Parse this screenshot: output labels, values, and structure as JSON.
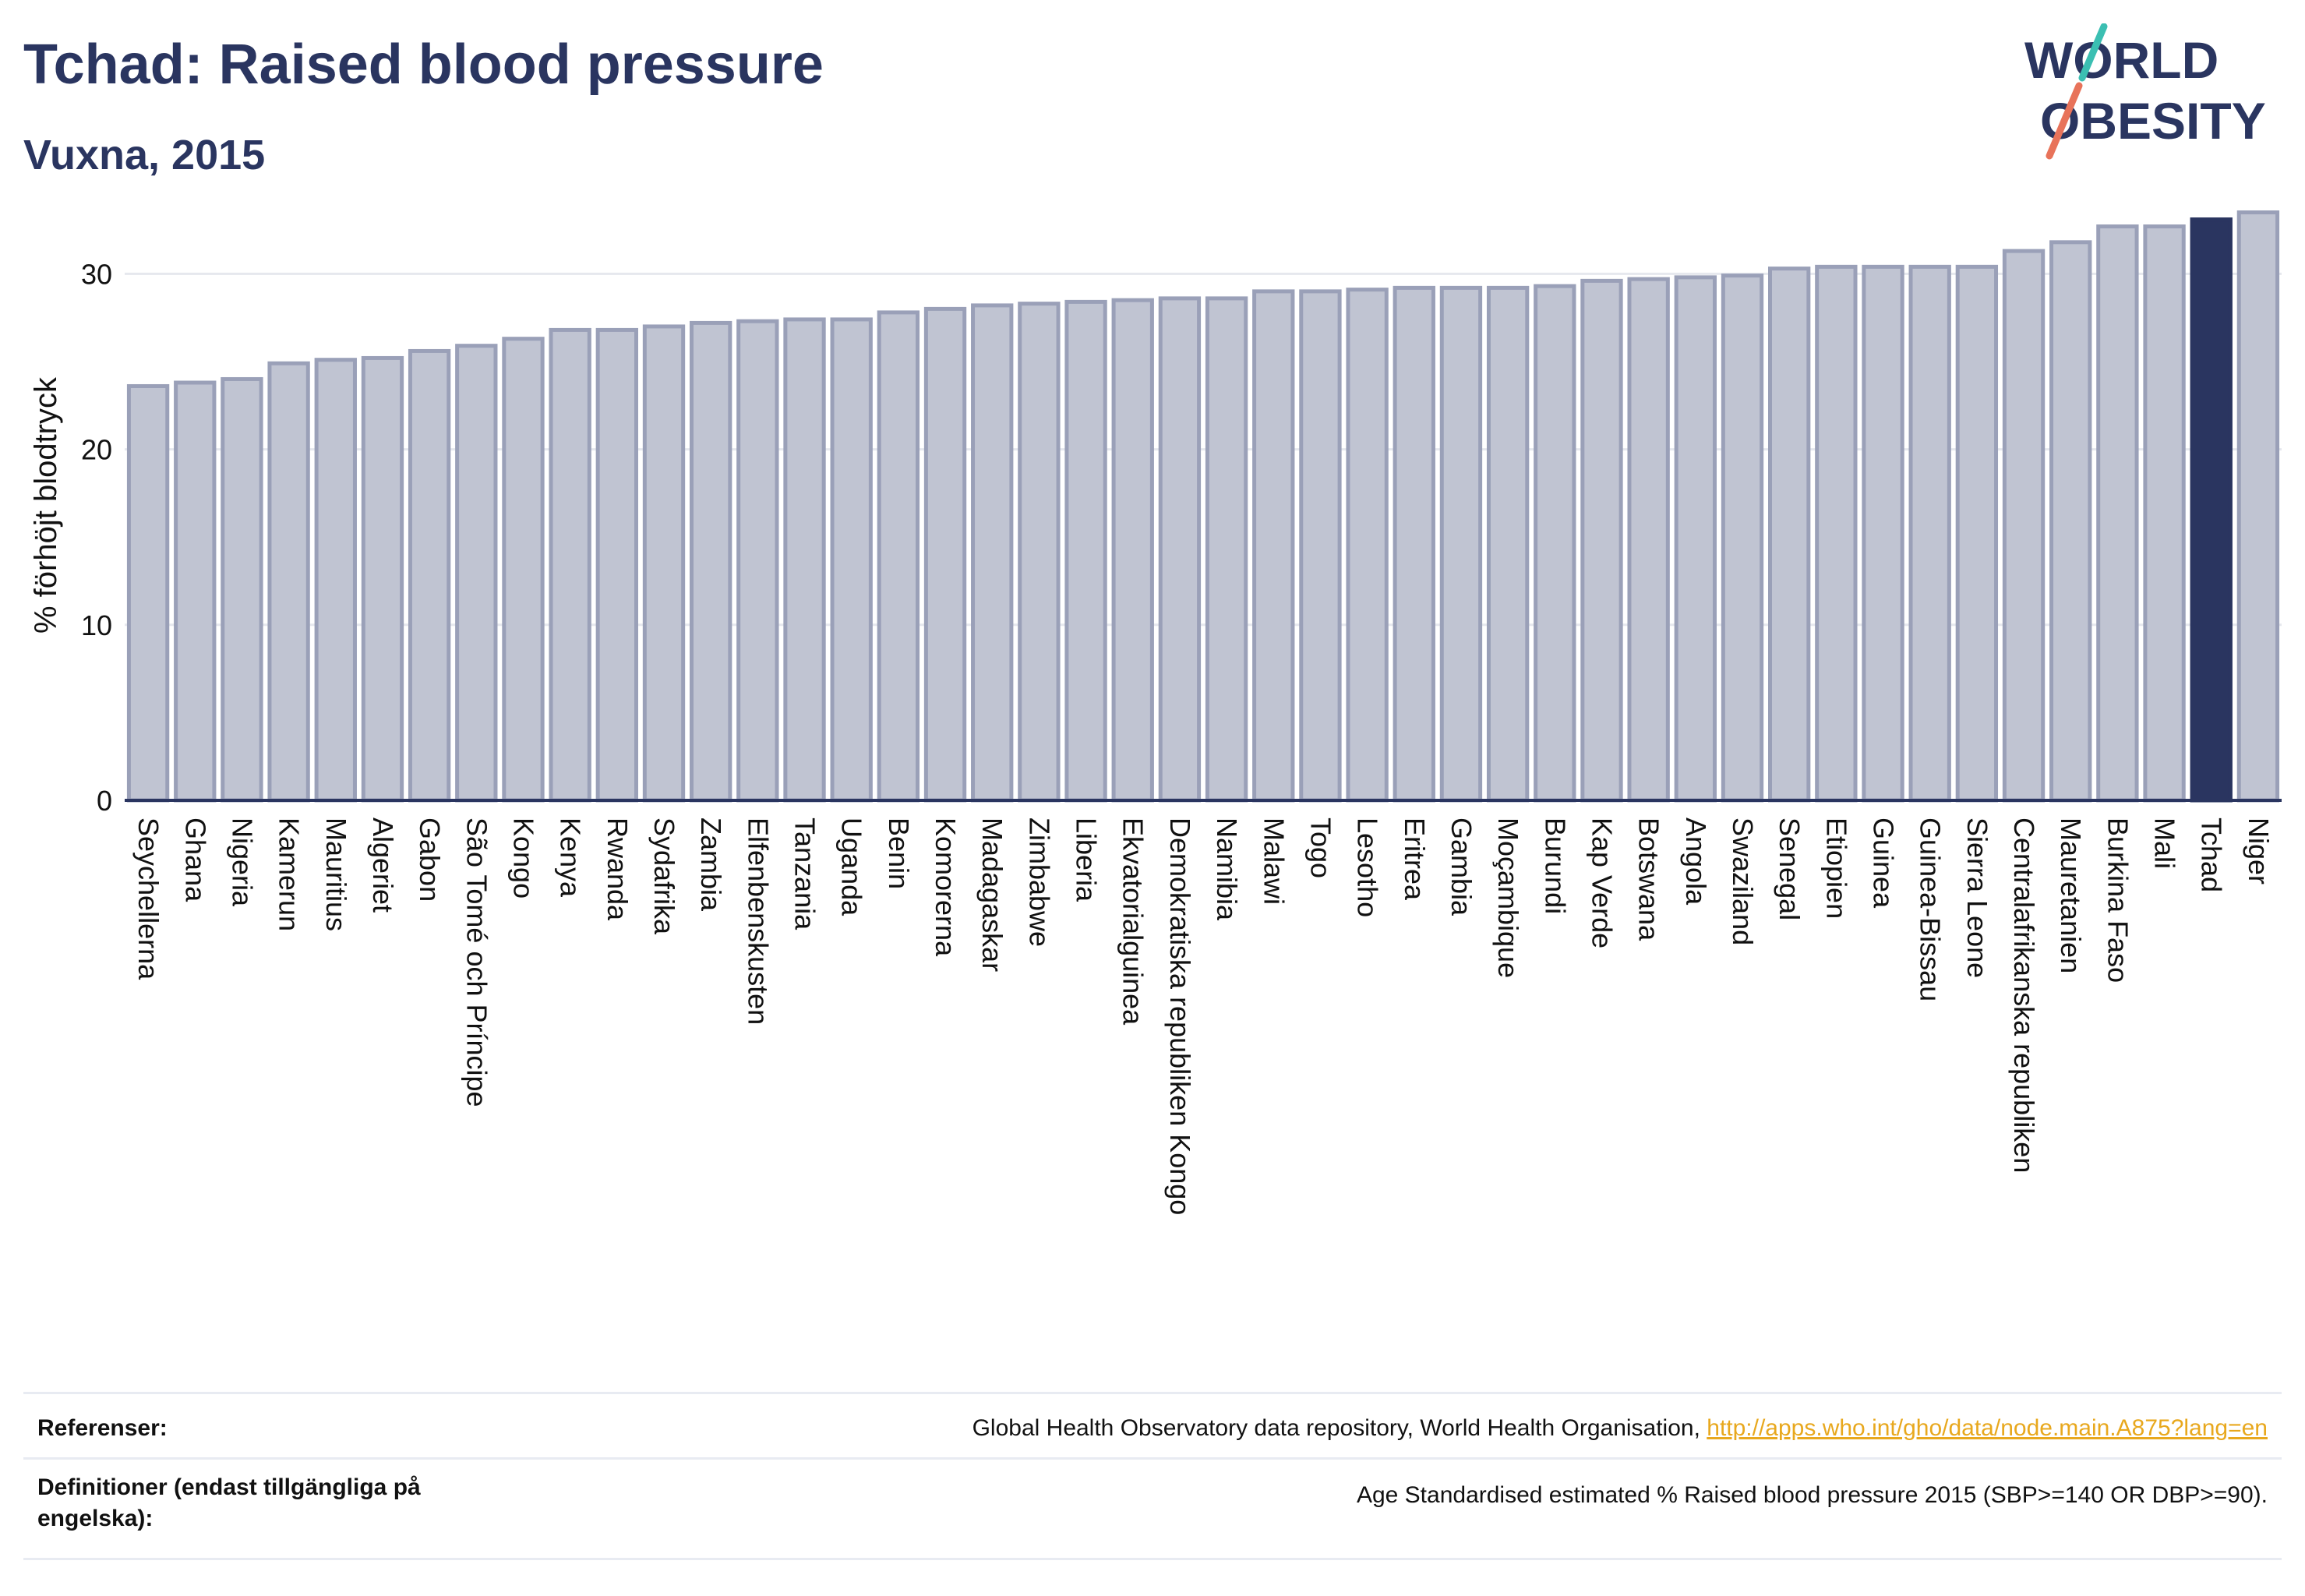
{
  "header": {
    "title": "Tchad: Raised blood pressure",
    "subtitle": "Vuxna, 2015"
  },
  "logo": {
    "line1": "WORLD",
    "line2": "OBESITY",
    "colors": {
      "text": "#2a3560",
      "slash_teal": "#3bbfb2",
      "slash_coral": "#e8735a"
    }
  },
  "chart_data": {
    "type": "bar",
    "title": "Tchad: Raised blood pressure",
    "subtitle": "Vuxna, 2015",
    "xlabel": "",
    "ylabel": "% förhöjt blodtryck",
    "ylim": [
      0,
      34.5
    ],
    "yticks": [
      0,
      10,
      20,
      30
    ],
    "grid": true,
    "highlight": "Tchad",
    "colors": {
      "bar": "#c0c4d2",
      "bar_border": "#9aa0b8",
      "highlight": "#2a3560",
      "grid": "#e6e8ee",
      "axis": "#2a3560"
    },
    "categories": [
      "Seychellerna",
      "Ghana",
      "Nigeria",
      "Kamerun",
      "Mauritius",
      "Algeriet",
      "Gabon",
      "São Tomé och Príncipe",
      "Kongo",
      "Kenya",
      "Rwanda",
      "Sydafrika",
      "Zambia",
      "Elfenbenskusten",
      "Tanzania",
      "Uganda",
      "Benin",
      "Komorerna",
      "Madagaskar",
      "Zimbabwe",
      "Liberia",
      "Ekvatorialguinea",
      "Demokratiska republiken Kongo",
      "Namibia",
      "Malawi",
      "Togo",
      "Lesotho",
      "Eritrea",
      "Gambia",
      "Moçambique",
      "Burundi",
      "Kap Verde",
      "Botswana",
      "Angola",
      "Swaziland",
      "Senegal",
      "Etiopien",
      "Guinea",
      "Guinea-Bissau",
      "Sierra Leone",
      "Centralafrikanska republiken",
      "Mauretanien",
      "Burkina Faso",
      "Mali",
      "Tchad",
      "Niger"
    ],
    "values": [
      23.6,
      23.8,
      24.0,
      24.9,
      25.1,
      25.2,
      25.6,
      25.9,
      26.3,
      26.8,
      26.8,
      27.0,
      27.2,
      27.3,
      27.4,
      27.4,
      27.8,
      28.0,
      28.2,
      28.3,
      28.4,
      28.5,
      28.6,
      28.6,
      29.0,
      29.0,
      29.1,
      29.2,
      29.2,
      29.2,
      29.3,
      29.6,
      29.7,
      29.8,
      29.9,
      30.3,
      30.4,
      30.4,
      30.4,
      30.4,
      31.3,
      31.8,
      32.7,
      32.7,
      33.1,
      33.5
    ]
  },
  "footer": {
    "references_label": "Referenser:",
    "references_text": "Global Health Observatory data repository, World Health Organisation, ",
    "references_link": "http://apps.who.int/gho/data/node.main.A875?lang=en",
    "definitions_label": "Definitioner (endast tillgängliga på engelska):",
    "definitions_text": "Age Standardised estimated % Raised blood pressure 2015 (SBP>=140 OR DBP>=90)."
  }
}
